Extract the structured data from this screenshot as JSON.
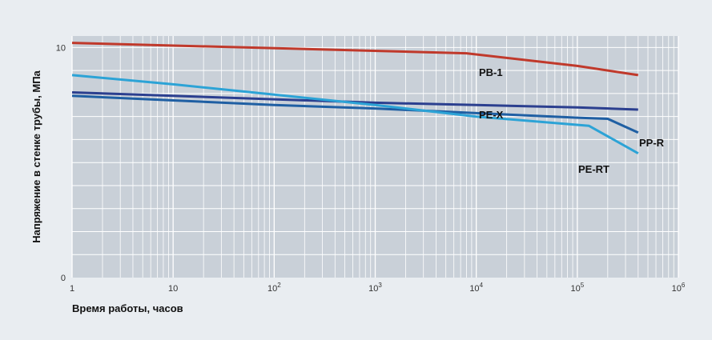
{
  "chart_data": {
    "type": "line",
    "xscale": "log",
    "xlim": [
      1,
      1000000
    ],
    "ylim": [
      0,
      10.5
    ],
    "grid": true,
    "xlabel": "Время работы, часов",
    "ylabel": "Напряжение в стенке трубы, МПа",
    "x_ticks": [
      {
        "base": "1",
        "exp": ""
      },
      {
        "base": "10",
        "exp": ""
      },
      {
        "base": "10",
        "exp": "2"
      },
      {
        "base": "10",
        "exp": "3"
      },
      {
        "base": "10",
        "exp": "4"
      },
      {
        "base": "10",
        "exp": "5"
      },
      {
        "base": "10",
        "exp": "6"
      }
    ],
    "y_ticks": [
      {
        "value": 0,
        "label": "0"
      },
      {
        "value": 10,
        "label": "10"
      }
    ],
    "series": [
      {
        "name": "PB-1",
        "color": "#c0392b",
        "x": [
          1,
          8000,
          100000,
          400000
        ],
        "y": [
          10.2,
          9.75,
          9.2,
          8.8
        ]
      },
      {
        "name": "PE-X",
        "color": "#2b3f8f",
        "x": [
          1,
          10,
          100,
          1000,
          10000,
          100000,
          400000
        ],
        "y": [
          8.05,
          7.9,
          7.75,
          7.6,
          7.5,
          7.4,
          7.3
        ]
      },
      {
        "name": "PP-R",
        "color": "#1f5fa3",
        "x": [
          1,
          10,
          100,
          1000,
          10000,
          100000,
          200000,
          400000
        ],
        "y": [
          7.9,
          7.7,
          7.5,
          7.35,
          7.15,
          6.95,
          6.9,
          6.3
        ]
      },
      {
        "name": "PE-RT",
        "color": "#2ca3d6",
        "x": [
          1,
          10,
          100,
          1000,
          10000,
          130000,
          400000
        ],
        "y": [
          8.8,
          8.4,
          7.95,
          7.5,
          7.0,
          6.6,
          5.4
        ]
      }
    ]
  }
}
